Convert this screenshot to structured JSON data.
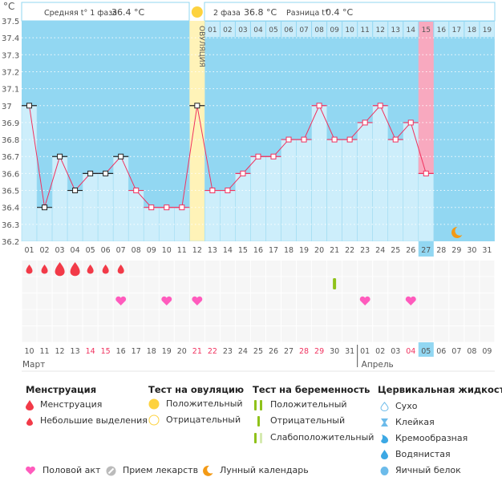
{
  "unit_label": "°C",
  "header": {
    "phase1_label": "Средняя t° 1 фаза",
    "phase1_value": "36.4 °C",
    "phase2_label": "2 фаза",
    "phase2_value": "36.8 °C",
    "diff_label": "Разница t°",
    "diff_value": "0.4 °C",
    "ovulation_label": "ОВУЛЯЦИЯ"
  },
  "colors": {
    "background": "#92d7f2",
    "bar": "#cdeefb",
    "line": "#f0325f",
    "ovulation": "#fff3b8",
    "today": "#f8a9bf",
    "sun": "#fdd23f",
    "drop": "#f23a48",
    "heart": "#ff5bbd",
    "test": "#8fc21a",
    "moon": "#f39a16"
  },
  "chart_data": {
    "type": "line",
    "ylim": [
      36.2,
      37.5
    ],
    "yticks": [
      "37.5",
      "37.4",
      "37.3",
      "37.2",
      "37.1",
      "37",
      "36.9",
      "36.8",
      "36.7",
      "36.6",
      "36.5",
      "36.4",
      "36.3",
      "36.2"
    ],
    "cycle_days": [
      "01",
      "02",
      "03",
      "04",
      "05",
      "06",
      "07",
      "08",
      "09",
      "10",
      "11",
      "12",
      "13",
      "14",
      "15",
      "16",
      "17",
      "18",
      "19",
      "20",
      "21",
      "22",
      "23",
      "24",
      "25",
      "26",
      "27",
      "28",
      "29",
      "30",
      "31"
    ],
    "temperatures": [
      37.0,
      36.4,
      36.7,
      36.5,
      36.6,
      36.6,
      36.7,
      36.5,
      36.4,
      36.4,
      36.4,
      37.0,
      36.5,
      36.5,
      36.6,
      36.7,
      36.7,
      36.8,
      36.8,
      37.0,
      36.8,
      36.8,
      36.9,
      37.0,
      36.8,
      36.9,
      36.6
    ],
    "ovulation_day": 12,
    "today_cycle_day": 27,
    "phase2_days": [
      "01",
      "02",
      "03",
      "04",
      "05",
      "06",
      "07",
      "08",
      "09",
      "10",
      "11",
      "12",
      "13",
      "14",
      "15",
      "16",
      "17",
      "18",
      "19"
    ],
    "dates": [
      "10",
      "11",
      "12",
      "13",
      "14",
      "15",
      "16",
      "17",
      "18",
      "19",
      "20",
      "21",
      "22",
      "23",
      "24",
      "25",
      "26",
      "27",
      "28",
      "29",
      "30",
      "31",
      "01",
      "02",
      "03",
      "04",
      "05",
      "06",
      "07",
      "08",
      "09"
    ],
    "weekend_dates": [
      5,
      6,
      12,
      13,
      19,
      20,
      26
    ],
    "today_date_index": 27,
    "months": [
      "Март",
      "Апрель"
    ],
    "month_start_index": 23,
    "menstruation": [
      "small",
      "small",
      "big",
      "big",
      "small",
      "small",
      "small"
    ],
    "pregnancy_test_days": [
      21
    ],
    "intercourse_days": [
      7,
      10,
      12,
      23,
      26
    ],
    "moon_day": 29
  },
  "legend": {
    "menstruation": {
      "title": "Менструация",
      "items": [
        "Менструация",
        "Небольшие выделения"
      ]
    },
    "ovulation_test": {
      "title": "Тест на овуляцию",
      "items": [
        "Положительный",
        "Отрицательный"
      ]
    },
    "pregnancy_test": {
      "title": "Тест на беременность",
      "items": [
        "Положительный",
        "Отрицательный",
        "Слабоположительный"
      ]
    },
    "cervical": {
      "title": "Цервикальная жидкость",
      "items": [
        "Сухо",
        "Клейкая",
        "Кремообразная",
        "Водянистая",
        "Яичный белок"
      ]
    },
    "bottom": [
      "Половой акт",
      "Прием лекарств",
      "Лунный календарь"
    ]
  }
}
